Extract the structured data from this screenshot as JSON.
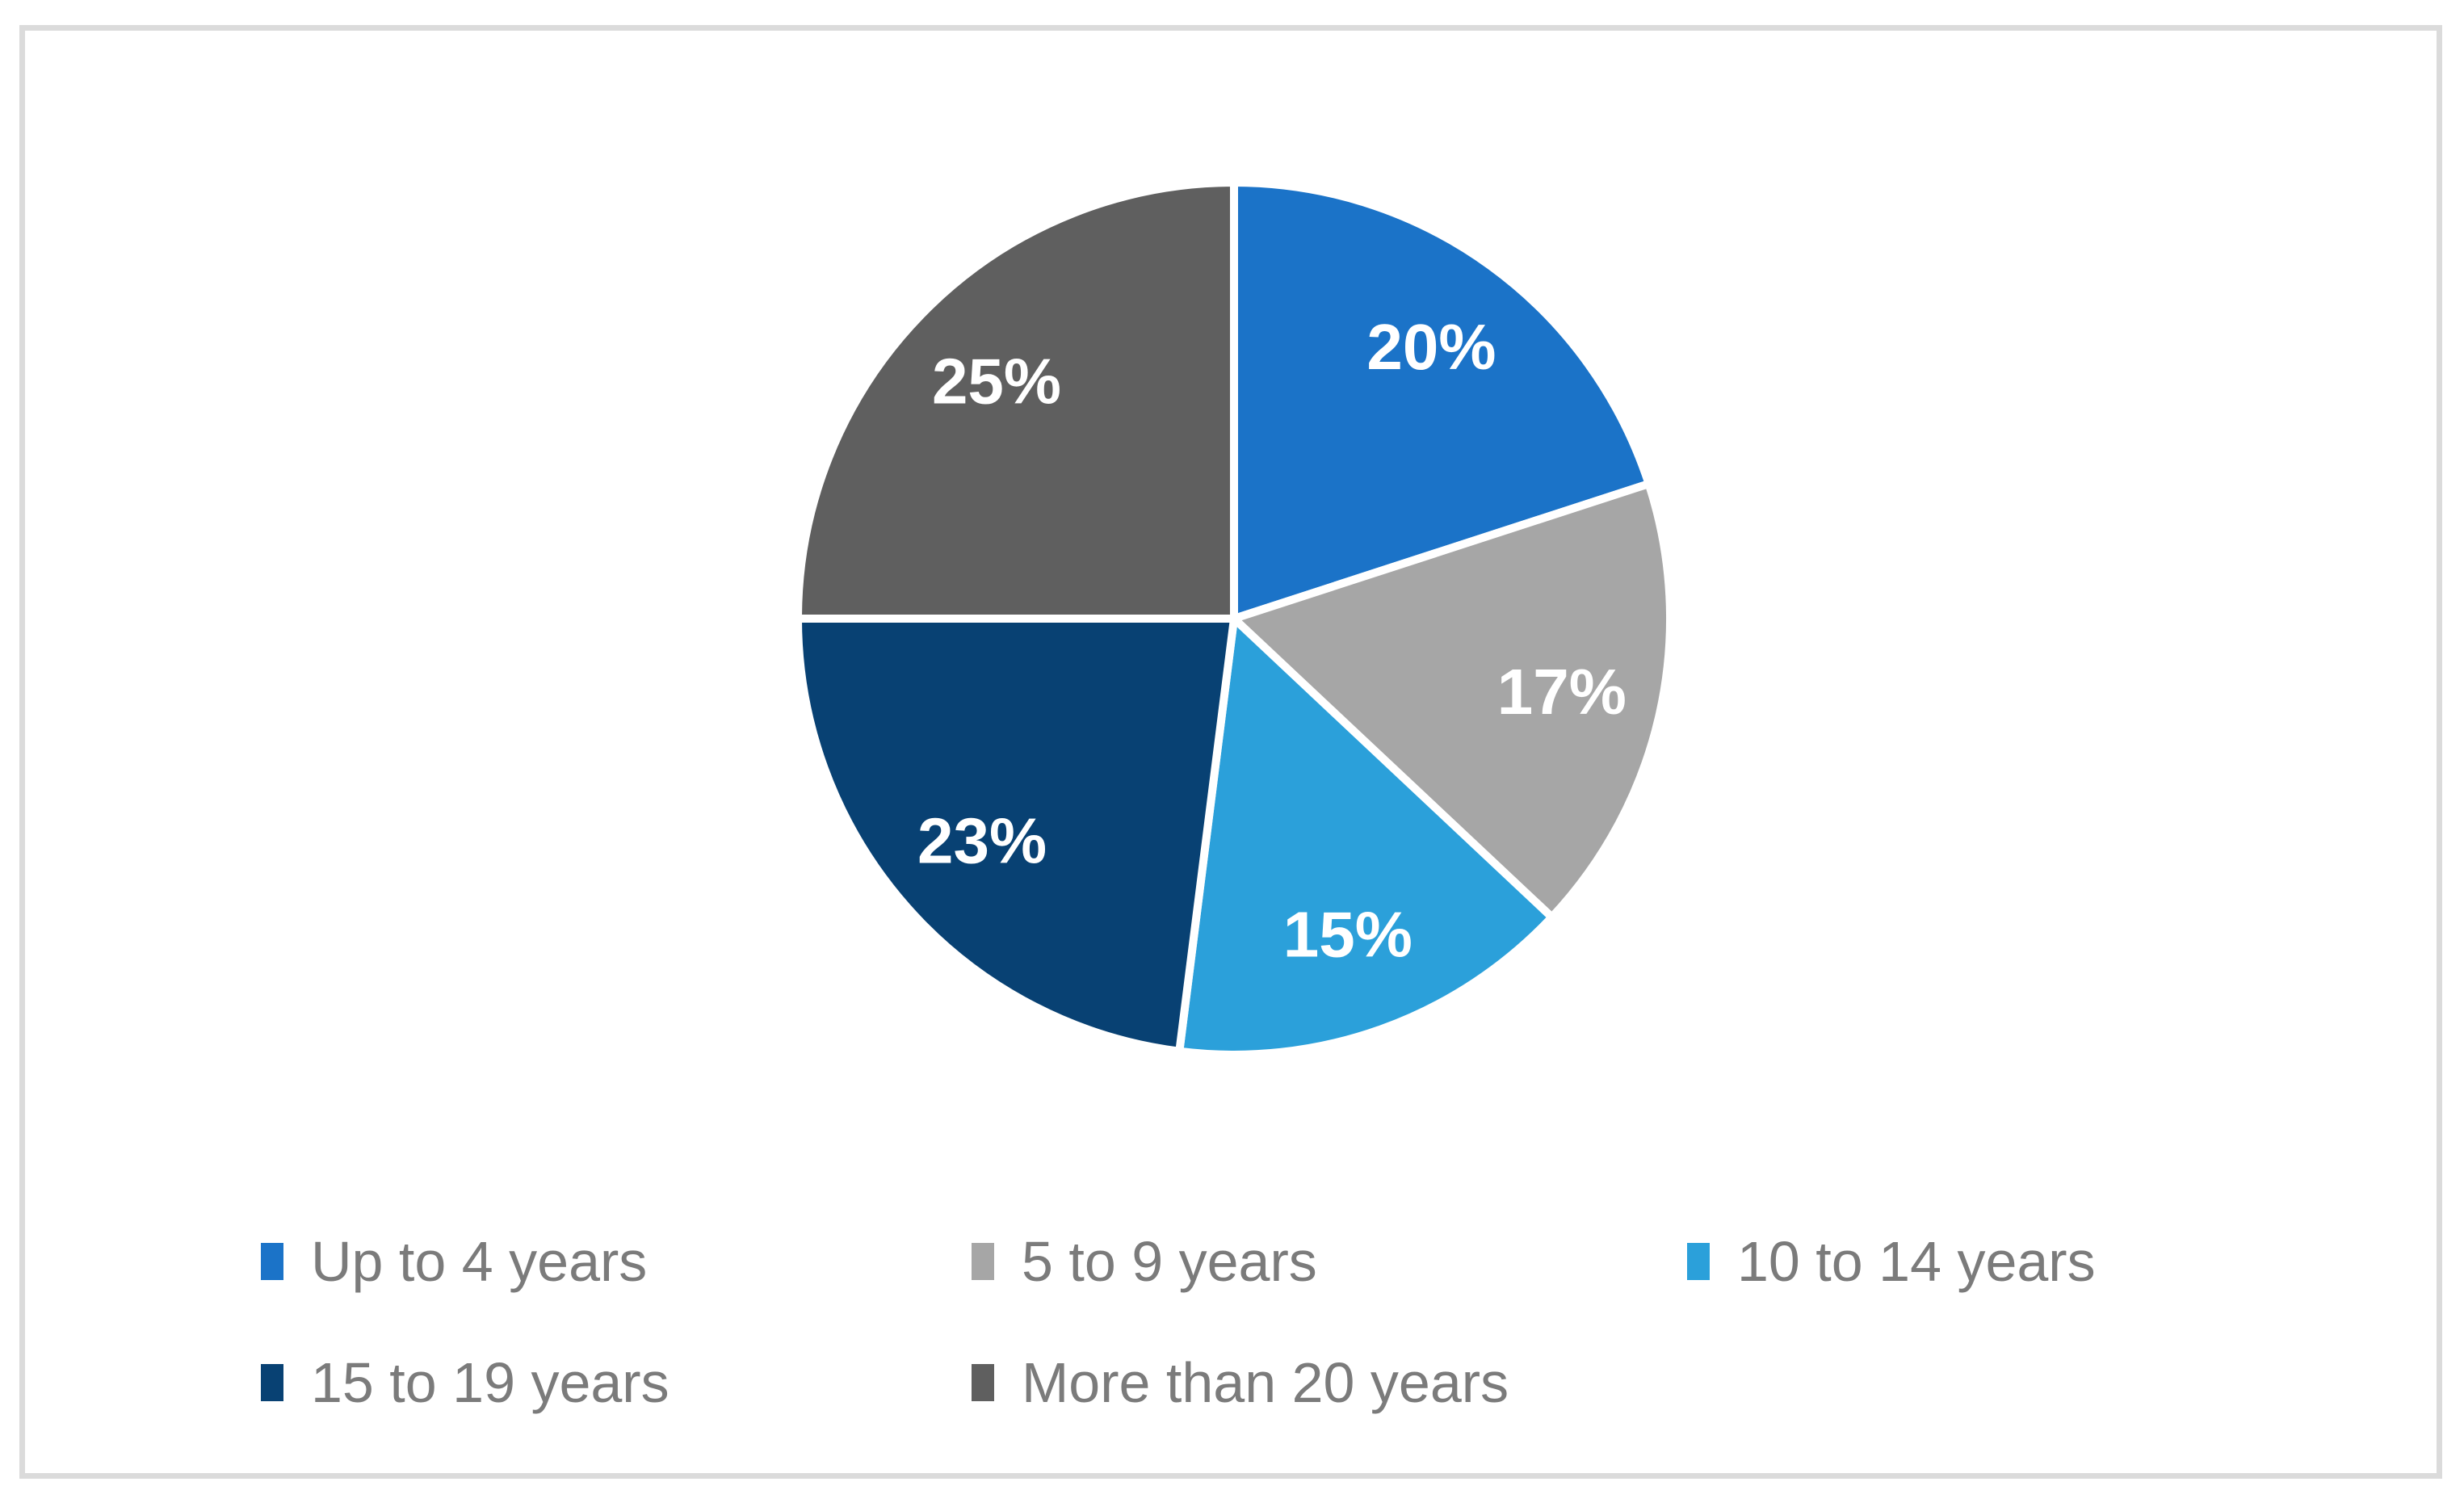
{
  "chart_data": {
    "type": "pie",
    "title": "",
    "data_labels": "percent",
    "start_angle_deg": 0,
    "direction": "clockwise",
    "legend_position": "bottom",
    "slices": [
      {
        "label": "Up to 4 years",
        "value": 20,
        "display": "20%",
        "color": "#1b73c8"
      },
      {
        "label": "5 to 9 years",
        "value": 17,
        "display": "17%",
        "color": "#a6a6a6"
      },
      {
        "label": "10 to 14 years",
        "value": 15,
        "display": "15%",
        "color": "#2ba0da"
      },
      {
        "label": "15 to 19 years",
        "value": 23,
        "display": "23%",
        "color": "#084173"
      },
      {
        "label": "More than 20 years",
        "value": 25,
        "display": "25%",
        "color": "#5f5f5f"
      }
    ],
    "slice_label_color": "#ffffff",
    "slice_separator_color": "#ffffff",
    "legend_text_color": "#7b7b7b"
  },
  "frame": {
    "border_color": "#dbdbdb",
    "background": "#ffffff"
  }
}
